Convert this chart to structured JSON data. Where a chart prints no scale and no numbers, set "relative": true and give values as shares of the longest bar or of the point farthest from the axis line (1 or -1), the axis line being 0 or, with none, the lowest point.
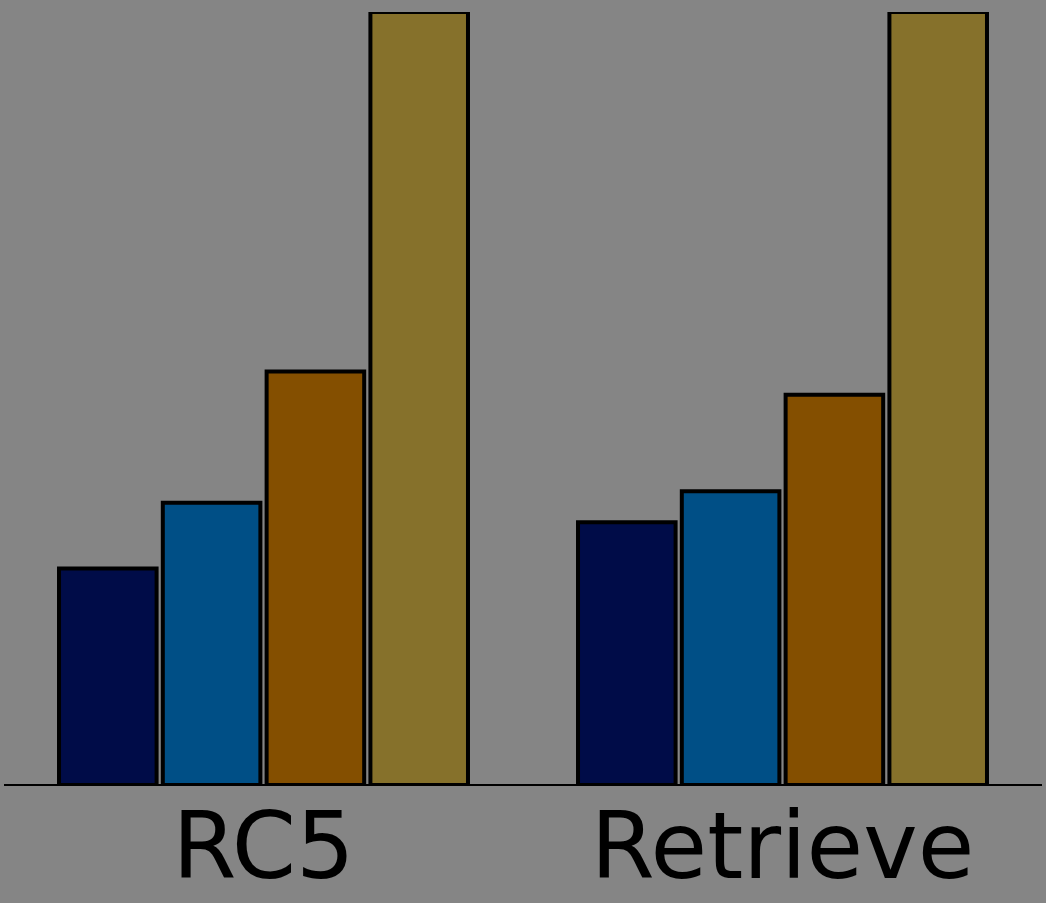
{
  "chart_data": {
    "type": "bar",
    "relative": true,
    "categories": [
      "RC5",
      "Retrieve"
    ],
    "series": [
      {
        "color": "#000c48",
        "values": [
          0.28,
          0.34
        ]
      },
      {
        "color": "#004f86",
        "values": [
          0.365,
          0.38
        ]
      },
      {
        "color": "#844f00",
        "values": [
          0.535,
          0.505
        ]
      },
      {
        "color": "#86712b",
        "values": [
          1,
          1
        ]
      }
    ],
    "legend": false,
    "grid": false
  }
}
